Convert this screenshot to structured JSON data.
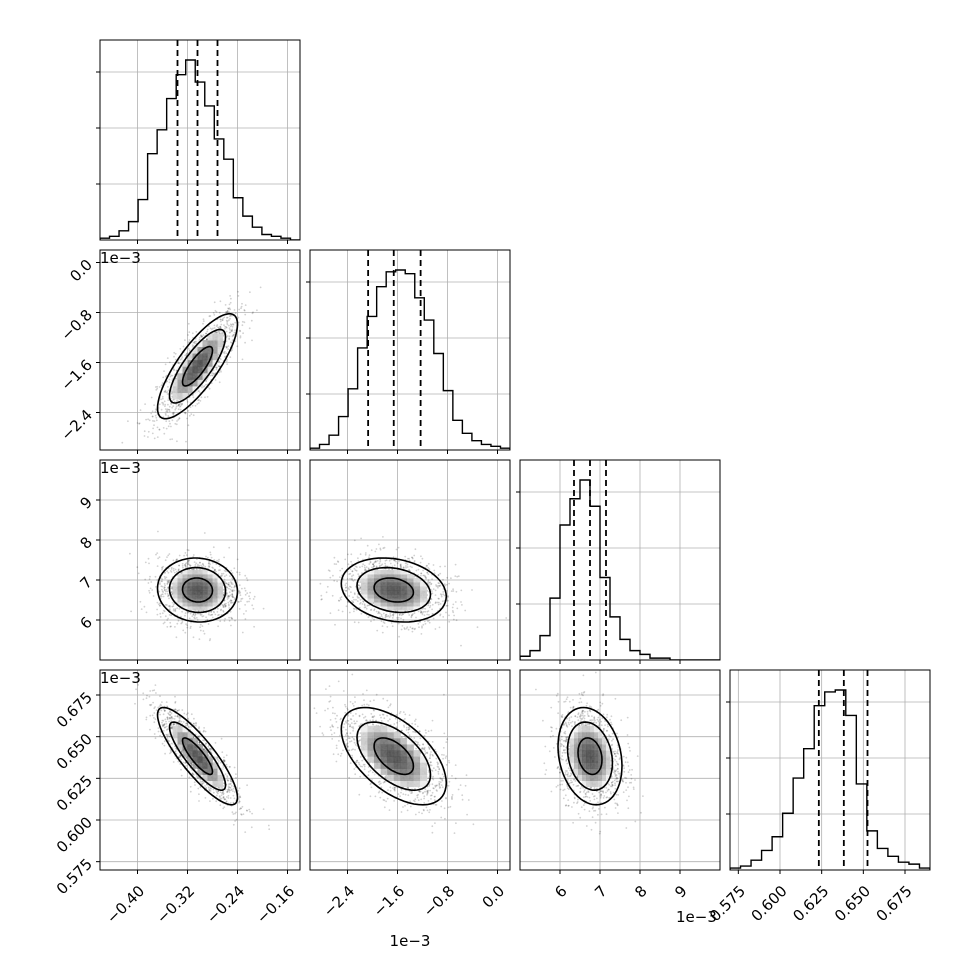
{
  "chart_data": {
    "type": "corner",
    "params": [
      {
        "range": [
          -0.46,
          -0.14
        ],
        "ticks": [
          -0.4,
          -0.32,
          -0.24,
          -0.16
        ],
        "tick_labels": [
          "−0.40",
          "−0.32",
          "−0.24",
          "−0.16"
        ],
        "offset": "",
        "quantiles": [
          -0.336,
          -0.304,
          -0.272
        ],
        "hist": [
          1,
          2,
          5,
          10,
          22,
          47,
          60,
          77,
          90,
          98,
          86,
          73,
          55,
          44,
          23,
          13,
          7,
          3,
          2,
          1,
          0
        ]
      },
      {
        "range": [
          -3.0,
          0.2
        ],
        "ticks": [
          -2.4,
          -1.6,
          -0.8,
          0.0
        ],
        "tick_labels": [
          "−2.4",
          "−1.6",
          "−0.8",
          "0.0"
        ],
        "offset": "1e−3",
        "quantiles": [
          -2.07,
          -1.66,
          -1.23
        ],
        "hist": [
          1,
          3,
          8,
          18,
          33,
          55,
          72,
          88,
          96,
          97,
          95,
          82,
          70,
          52,
          32,
          16,
          9,
          5,
          3,
          2,
          1
        ]
      },
      {
        "range": [
          5.0,
          10.0
        ],
        "ticks": [
          6,
          7,
          8,
          9
        ],
        "tick_labels": [
          "6",
          "7",
          "8",
          "9"
        ],
        "offset": "1e−3",
        "quantiles": [
          6.35,
          6.75,
          7.15
        ],
        "hist": [
          2,
          5,
          13,
          33,
          72,
          86,
          96,
          82,
          44,
          23,
          11,
          5,
          3,
          1,
          1,
          0,
          0,
          0,
          0,
          0
        ]
      },
      {
        "range": [
          0.57,
          0.69
        ],
        "ticks": [
          0.575,
          0.6,
          0.625,
          0.65,
          0.675
        ],
        "tick_labels": [
          "0.575",
          "0.600",
          "0.625",
          "0.650",
          "0.675"
        ],
        "offset": "1e−3",
        "quantiles": [
          0.6233,
          0.6383,
          0.6525
        ],
        "hist": [
          1,
          2,
          5,
          10,
          17,
          29,
          47,
          62,
          84,
          91,
          92,
          79,
          44,
          20,
          11,
          7,
          4,
          3,
          1
        ]
      }
    ],
    "correlations": {
      "1-0": 0.8,
      "2-0": -0.05,
      "2-1": -0.2,
      "3-0": -0.85,
      "3-1": -0.55,
      "3-2": -0.2
    },
    "bottom_offset_label": "1e−3",
    "grid": true
  }
}
